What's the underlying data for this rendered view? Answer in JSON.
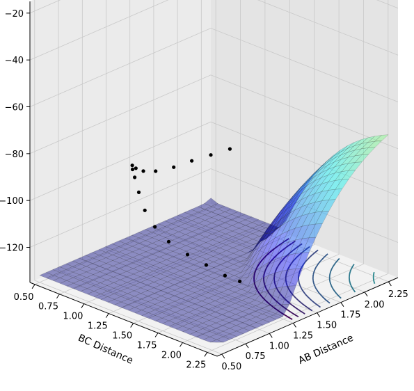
{
  "chart_data": {
    "type": "surface3d",
    "xlabel": "AB Distance",
    "ylabel": "BC Distance",
    "zlabel": "",
    "x_ticks": [
      0.5,
      0.75,
      1.0,
      1.25,
      1.5,
      1.75,
      2.0,
      2.25
    ],
    "x_tick_labels": [
      "0.50",
      "0.75",
      "1.00",
      "1.25",
      "1.50",
      "1.75",
      "2.00",
      "2.25"
    ],
    "y_ticks": [
      0.5,
      0.75,
      1.0,
      1.25,
      1.5,
      1.75,
      2.0,
      2.25
    ],
    "y_tick_labels": [
      "0.50",
      "0.75",
      "1.00",
      "1.25",
      "1.50",
      "1.75",
      "2.00",
      "2.25"
    ],
    "z_ticks": [
      -120,
      -100,
      -80,
      -60,
      -40,
      -20
    ],
    "z_tick_labels": [
      "−120",
      "−100",
      "−80",
      "−60",
      "−40",
      "−20"
    ],
    "xlim": [
      0.45,
      2.35
    ],
    "ylim": [
      0.45,
      2.35
    ],
    "zlim": [
      -135,
      -15
    ],
    "surface_range": [
      0.5,
      2.3
    ],
    "surface_colormap": "jet",
    "contour_colormap": "viridis",
    "grid": true,
    "trajectory": [
      {
        "x": 2.25,
        "y": 0.74,
        "z": -105
      },
      {
        "x": 2.05,
        "y": 0.74,
        "z": -104
      },
      {
        "x": 1.85,
        "y": 0.74,
        "z": -103
      },
      {
        "x": 1.65,
        "y": 0.75,
        "z": -102
      },
      {
        "x": 1.45,
        "y": 0.76,
        "z": -100
      },
      {
        "x": 1.3,
        "y": 0.78,
        "z": -97
      },
      {
        "x": 1.18,
        "y": 0.82,
        "z": -93
      },
      {
        "x": 1.08,
        "y": 0.88,
        "z": -89
      },
      {
        "x": 1.0,
        "y": 0.96,
        "z": -88
      },
      {
        "x": 0.94,
        "y": 1.04,
        "z": -89
      },
      {
        "x": 0.89,
        "y": 1.13,
        "z": -93
      },
      {
        "x": 0.84,
        "y": 1.24,
        "z": -98
      },
      {
        "x": 0.8,
        "y": 1.38,
        "z": -102
      },
      {
        "x": 0.77,
        "y": 1.55,
        "z": -105
      },
      {
        "x": 0.76,
        "y": 1.75,
        "z": -107
      },
      {
        "x": 0.75,
        "y": 1.95,
        "z": -108
      },
      {
        "x": 0.74,
        "y": 2.15,
        "z": -109
      },
      {
        "x": 0.74,
        "y": 2.3,
        "z": -109
      }
    ]
  }
}
